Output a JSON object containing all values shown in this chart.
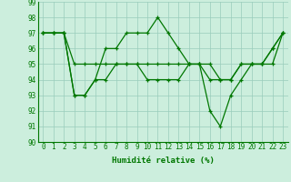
{
  "line1_x": [
    0,
    1,
    2,
    3,
    4,
    5,
    6,
    7,
    8,
    9,
    10,
    11,
    12,
    13,
    14,
    15,
    16,
    17,
    18,
    19,
    20,
    21,
    22,
    23
  ],
  "line1_y": [
    97,
    97,
    97,
    95,
    95,
    95,
    95,
    95,
    95,
    95,
    95,
    95,
    95,
    95,
    95,
    95,
    95,
    94,
    94,
    95,
    95,
    95,
    95,
    97
  ],
  "line2_x": [
    0,
    1,
    2,
    3,
    4,
    5,
    6,
    7,
    8,
    9,
    10,
    11,
    12,
    13,
    14,
    15,
    16,
    17,
    18,
    19,
    20,
    21,
    22,
    23
  ],
  "line2_y": [
    97,
    97,
    97,
    93,
    93,
    94,
    96,
    96,
    97,
    97,
    97,
    98,
    97,
    96,
    95,
    95,
    92,
    91,
    93,
    94,
    95,
    95,
    96,
    97
  ],
  "line3_x": [
    0,
    1,
    2,
    3,
    4,
    5,
    6,
    7,
    8,
    9,
    10,
    11,
    12,
    13,
    14,
    15,
    16,
    17,
    18,
    19,
    20,
    21,
    22,
    23
  ],
  "line3_y": [
    97,
    97,
    97,
    93,
    93,
    94,
    94,
    95,
    95,
    95,
    94,
    94,
    94,
    94,
    95,
    95,
    94,
    94,
    94,
    95,
    95,
    95,
    96,
    97
  ],
  "xlabel": "Humidité relative (%)",
  "ylim": [
    90,
    99
  ],
  "xlim": [
    -0.5,
    23.5
  ],
  "yticks": [
    90,
    91,
    92,
    93,
    94,
    95,
    96,
    97,
    98,
    99
  ],
  "xticks": [
    0,
    1,
    2,
    3,
    4,
    5,
    6,
    7,
    8,
    9,
    10,
    11,
    12,
    13,
    14,
    15,
    16,
    17,
    18,
    19,
    20,
    21,
    22,
    23
  ],
  "line_color": "#007700",
  "bg_color": "#cceedd",
  "grid_color": "#99ccbb",
  "tick_fontsize": 5.5,
  "xlabel_fontsize": 6.5
}
